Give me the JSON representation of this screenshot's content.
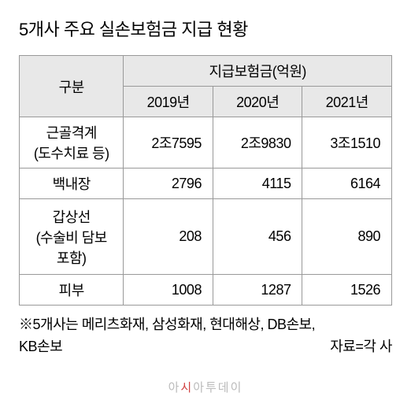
{
  "title": "5개사 주요 실손보험금 지급 현황",
  "table": {
    "header": {
      "category": "구분",
      "group": "지급보험금(억원)",
      "years": [
        "2019년",
        "2020년",
        "2021년"
      ]
    },
    "rows": [
      {
        "label": "근골격계\n(도수치료 등)",
        "values": [
          "2조7595",
          "2조9830",
          "3조1510"
        ],
        "height": "tall"
      },
      {
        "label": "백내장",
        "values": [
          "2796",
          "4115",
          "6164"
        ],
        "height": "normal"
      },
      {
        "label": "갑상선\n(수술비 담보\n포함)",
        "values": [
          "208",
          "456",
          "890"
        ],
        "height": "tall3"
      },
      {
        "label": "피부",
        "values": [
          "1008",
          "1287",
          "1526"
        ],
        "height": "normal"
      }
    ]
  },
  "footnote": {
    "line1": "※5개사는 메리츠화재, 삼성화재, 현대해상, DB손보,",
    "line2_left": "KB손보",
    "line2_right": "자료=각 사"
  },
  "watermark": {
    "pre": "아",
    "accent": "시",
    "post": "아투데이"
  },
  "colors": {
    "header_bg": "#e8e8e8",
    "border": "#999999",
    "text": "#000000",
    "watermark_gray": "#bbbbbb",
    "watermark_accent": "#d14141"
  },
  "fontsize": {
    "title": 22,
    "cell": 18,
    "footnote": 18,
    "watermark": 15
  }
}
